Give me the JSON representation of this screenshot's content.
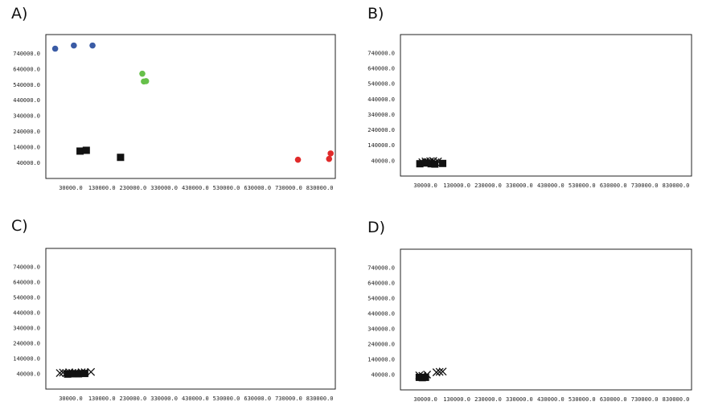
{
  "panels": [
    {
      "label": "A)",
      "chart_data": {
        "type": "scatter",
        "xlim": [
          -50000,
          880000
        ],
        "ylim": [
          -60000,
          860000
        ],
        "x_ticks": [
          30000,
          130000,
          230000,
          330000,
          430000,
          530000,
          630000,
          730000,
          830000
        ],
        "y_ticks": [
          40000,
          140000,
          240000,
          340000,
          440000,
          540000,
          640000,
          740000
        ],
        "tick_suffix": ".0",
        "series": [
          {
            "marker": "circle",
            "color": "#3a5ba5",
            "points": [
              [
                -20000,
                770000
              ],
              [
                40000,
                790000
              ],
              [
                100000,
                790000
              ]
            ]
          },
          {
            "marker": "circle",
            "color": "#66c04a",
            "points": [
              [
                260000,
                610000
              ],
              [
                265000,
                560000
              ],
              [
                272000,
                562000
              ]
            ]
          },
          {
            "marker": "square",
            "color": "#111111",
            "points": [
              [
                60000,
                115000
              ],
              [
                80000,
                120000
              ],
              [
                190000,
                75000
              ]
            ]
          },
          {
            "marker": "circle",
            "color": "#e02a2a",
            "points": [
              [
                760000,
                60000
              ],
              [
                860000,
                65000
              ],
              [
                865000,
                100000
              ]
            ]
          }
        ]
      }
    },
    {
      "label": "B)",
      "chart_data": {
        "type": "scatter",
        "xlim": [
          -50000,
          880000
        ],
        "ylim": [
          -60000,
          860000
        ],
        "x_ticks": [
          30000,
          130000,
          230000,
          330000,
          430000,
          530000,
          630000,
          730000,
          830000
        ],
        "y_ticks": [
          40000,
          140000,
          240000,
          340000,
          440000,
          540000,
          640000,
          740000
        ],
        "tick_suffix": ".0",
        "series": [
          {
            "marker": "x",
            "color": "#111111",
            "points": [
              [
                20000,
                30000
              ],
              [
                30000,
                35000
              ],
              [
                37000,
                32000
              ],
              [
                45000,
                36000
              ],
              [
                55000,
                38000
              ],
              [
                62000,
                30000
              ],
              [
                70000,
                35000
              ]
            ]
          },
          {
            "marker": "square",
            "color": "#111111",
            "points": [
              [
                12000,
                20000
              ],
              [
                30000,
                25000
              ],
              [
                48000,
                20000
              ],
              [
                60000,
                18000
              ],
              [
                85000,
                22000
              ]
            ]
          }
        ]
      }
    },
    {
      "label": "C)",
      "chart_data": {
        "type": "scatter",
        "xlim": [
          -50000,
          880000
        ],
        "ylim": [
          -60000,
          860000
        ],
        "x_ticks": [
          30000,
          130000,
          230000,
          330000,
          430000,
          530000,
          630000,
          730000,
          830000
        ],
        "y_ticks": [
          40000,
          140000,
          240000,
          340000,
          440000,
          540000,
          640000,
          740000
        ],
        "tick_suffix": ".0",
        "series": [
          {
            "marker": "x",
            "color": "#111111",
            "points": [
              [
                -5000,
                45000
              ],
              [
                5000,
                48000
              ],
              [
                15000,
                45000
              ],
              [
                25000,
                50000
              ],
              [
                35000,
                46000
              ],
              [
                45000,
                48000
              ],
              [
                55000,
                44000
              ],
              [
                65000,
                50000
              ],
              [
                75000,
                50000
              ],
              [
                95000,
                52000
              ]
            ]
          },
          {
            "marker": "square",
            "color": "#111111",
            "points": [
              [
                20000,
                38000
              ],
              [
                40000,
                40000
              ],
              [
                55000,
                40000
              ],
              [
                75000,
                42000
              ]
            ]
          }
        ]
      }
    },
    {
      "label": "D)",
      "chart_data": {
        "type": "scatter",
        "xlim": [
          -50000,
          880000
        ],
        "ylim": [
          -60000,
          860000
        ],
        "x_ticks": [
          30000,
          130000,
          230000,
          330000,
          430000,
          530000,
          630000,
          730000,
          830000
        ],
        "y_ticks": [
          40000,
          140000,
          240000,
          340000,
          440000,
          540000,
          640000,
          740000
        ],
        "tick_suffix": ".0",
        "series": [
          {
            "marker": "x",
            "color": "#111111",
            "points": [
              [
                10000,
                35000
              ],
              [
                20000,
                32000
              ],
              [
                35000,
                40000
              ],
              [
                65000,
                55000
              ],
              [
                75000,
                58000
              ],
              [
                85000,
                60000
              ]
            ]
          },
          {
            "marker": "square",
            "color": "#111111",
            "points": [
              [
                10000,
                22000
              ],
              [
                20000,
                20000
              ],
              [
                30000,
                22000
              ]
            ]
          }
        ]
      }
    }
  ]
}
